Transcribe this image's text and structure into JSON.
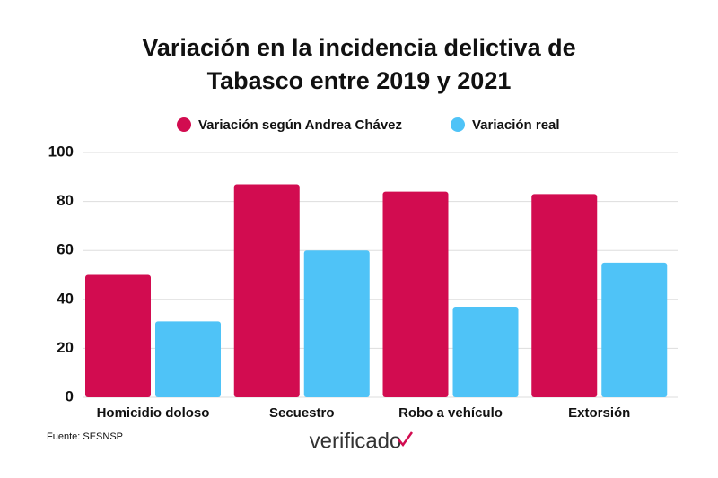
{
  "chart_data": {
    "type": "bar",
    "title": [
      "Variación en la incidencia delictiva de",
      "Tabasco entre 2019 y 2021"
    ],
    "categories": [
      "Homicidio doloso",
      "Secuestro",
      "Robo a vehículo",
      "Extorsión"
    ],
    "series": [
      {
        "name": "Variación según Andrea Chávez",
        "color": "#d20c50",
        "values": [
          50,
          87,
          84,
          83
        ]
      },
      {
        "name": "Variación real",
        "color": "#4fc3f7",
        "values": [
          31,
          60,
          37,
          55
        ]
      }
    ],
    "ylim": [
      0,
      100
    ],
    "yticks": [
      0,
      20,
      40,
      60,
      80,
      100
    ],
    "grid": true,
    "legend": "top",
    "source": "Fuente: SESNSP",
    "logo": "verificado"
  }
}
